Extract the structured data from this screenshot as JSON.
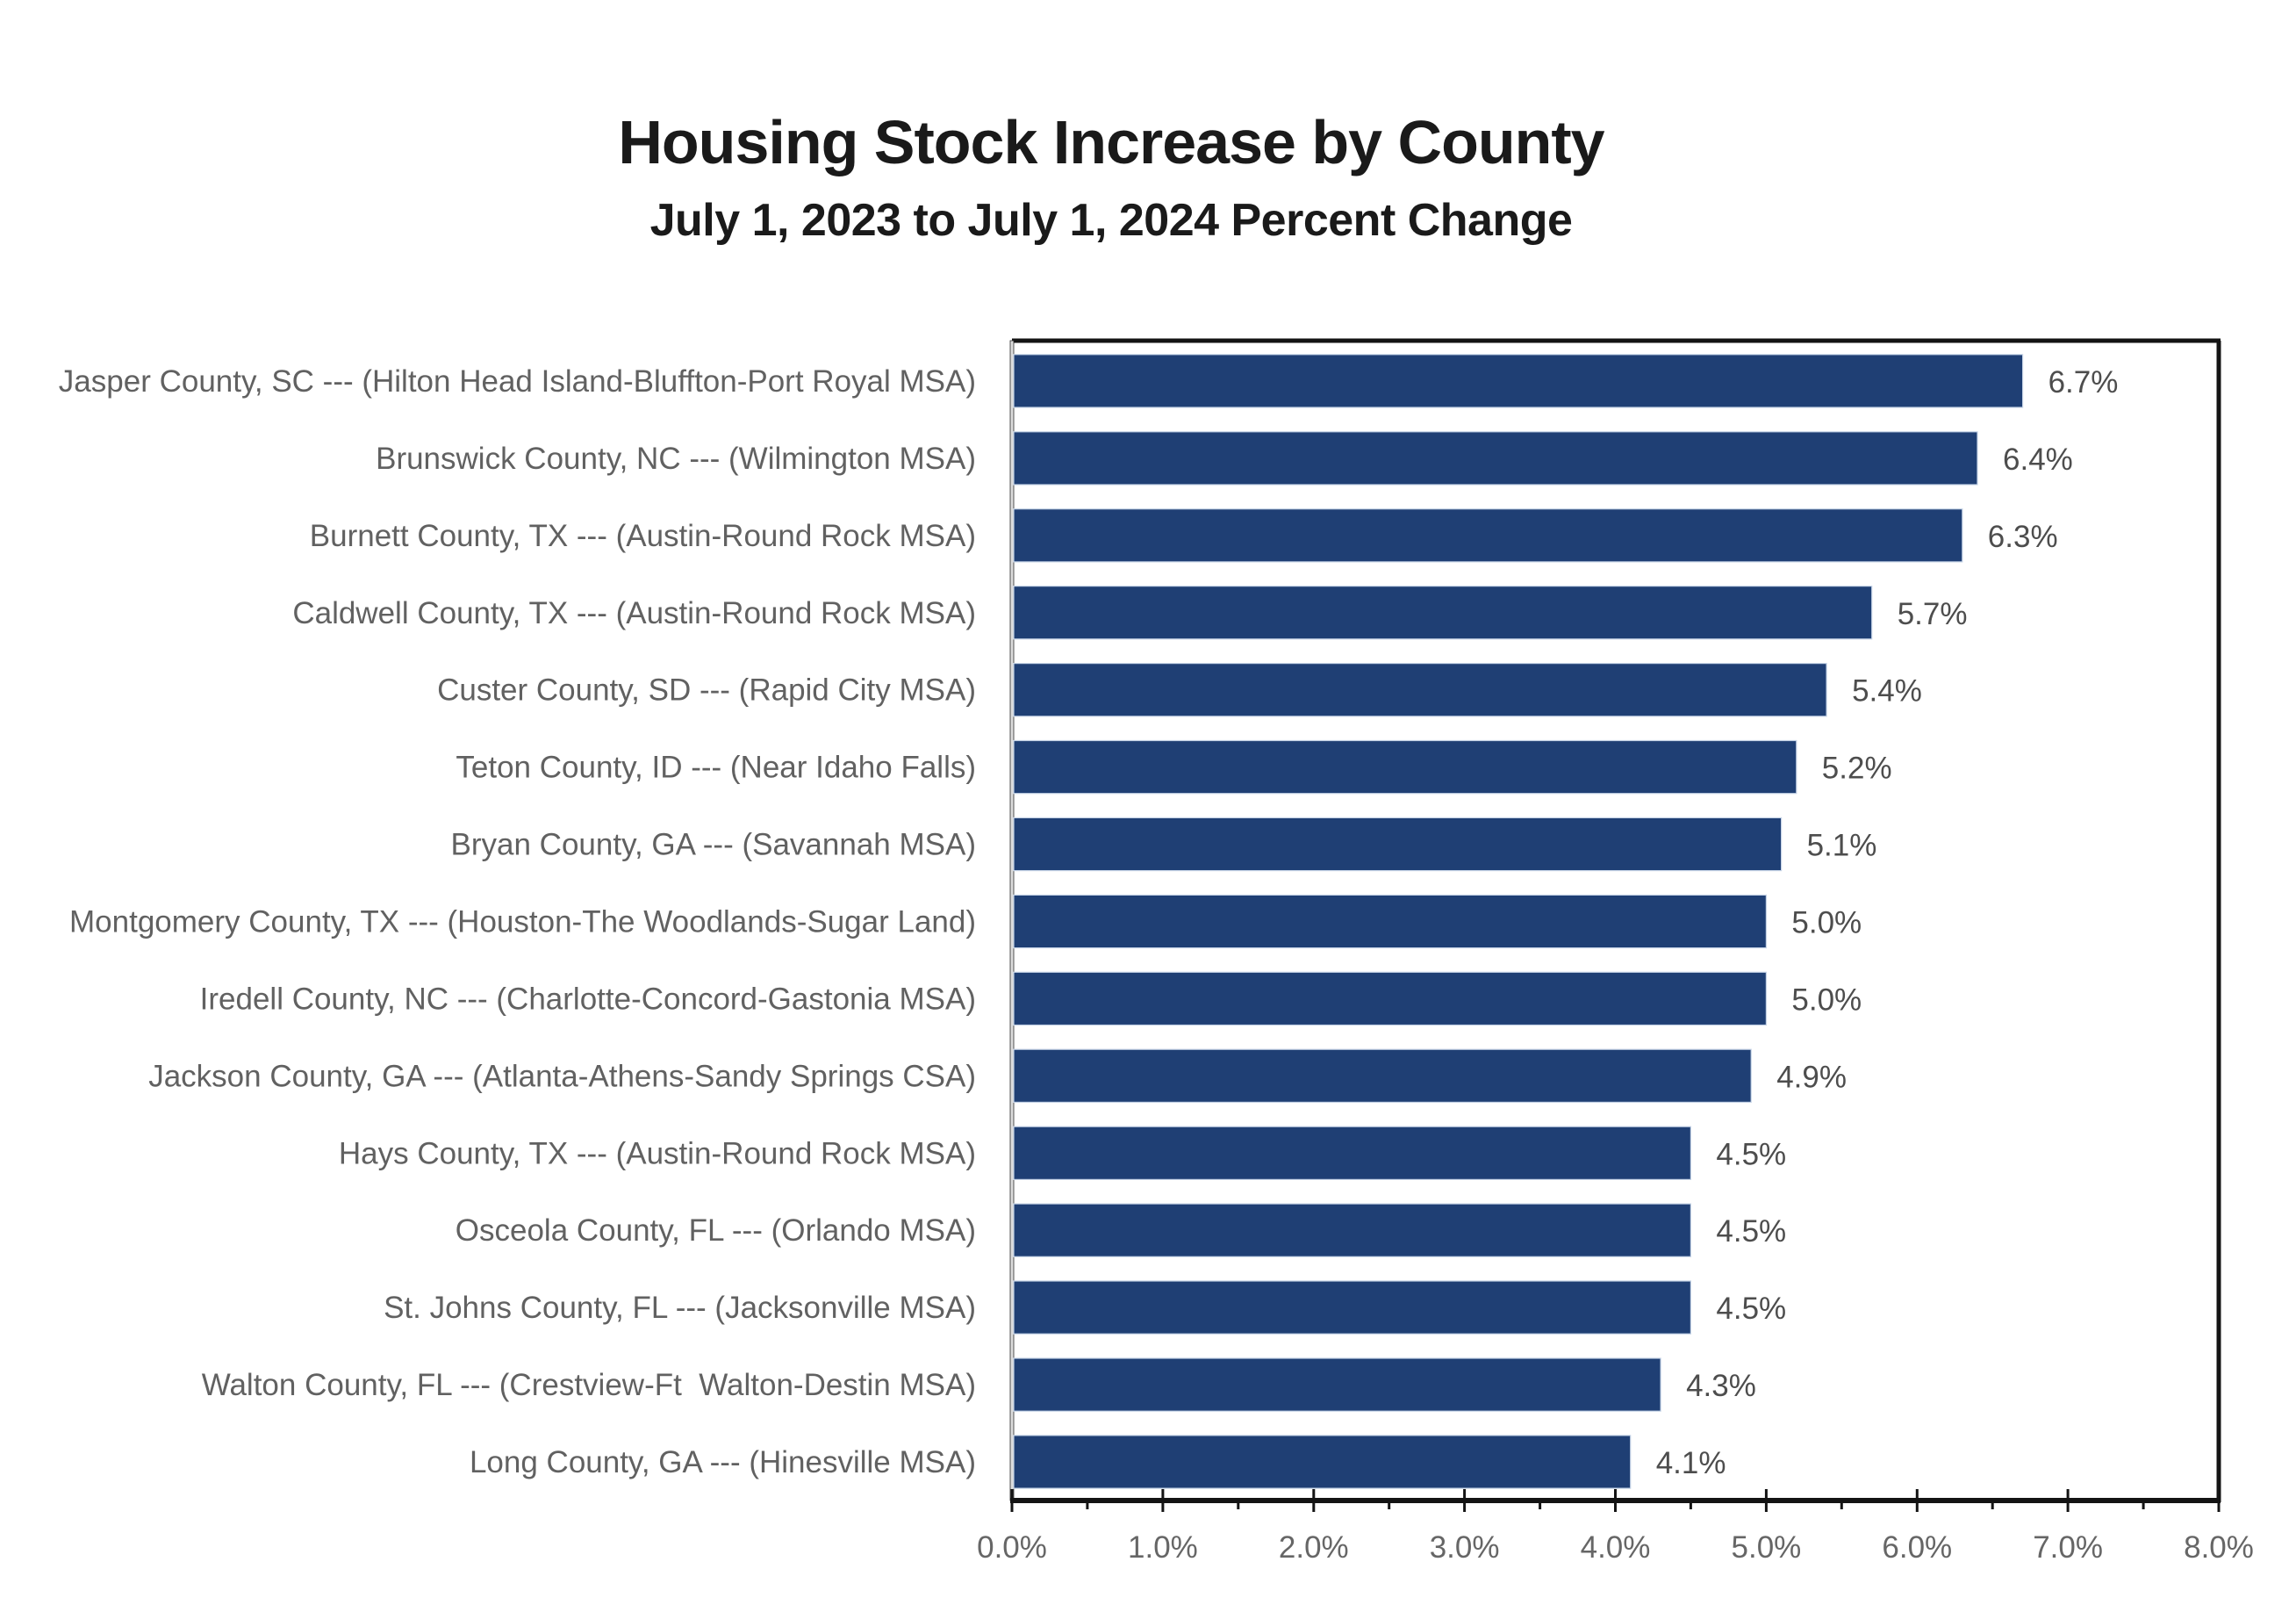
{
  "chart_data": {
    "type": "bar",
    "orientation": "horizontal",
    "title": "Housing Stock Increase by County",
    "subtitle": "July 1, 2023 to July 1, 2024 Percent Change",
    "xlabel": "",
    "ylabel": "",
    "xlim": [
      0,
      8
    ],
    "x_unit": "%",
    "x_ticks": [
      "0.0%",
      "1.0%",
      "2.0%",
      "3.0%",
      "4.0%",
      "5.0%",
      "6.0%",
      "7.0%",
      "8.0%"
    ],
    "x_tick_values": [
      0,
      1,
      2,
      3,
      4,
      5,
      6,
      7,
      8
    ],
    "x_minor_tick_step": 0.5,
    "grid": false,
    "legend": "none",
    "bar_color": "#1f3f74",
    "categories": [
      "Jasper County, SC --- (Hilton Head Island-Bluffton-Port Royal MSA)",
      "Brunswick County, NC --- (Wilmington MSA)",
      "Burnett County, TX --- (Austin-Round Rock MSA)",
      "Caldwell County, TX --- (Austin-Round Rock MSA)",
      "Custer County, SD --- (Rapid City MSA)",
      "Teton County, ID --- (Near Idaho Falls)",
      "Bryan County, GA --- (Savannah MSA)",
      "Montgomery County, TX --- (Houston-The Woodlands-Sugar Land)",
      "Iredell County, NC --- (Charlotte-Concord-Gastonia MSA)",
      "Jackson County, GA --- (Atlanta-Athens-Sandy Springs CSA)",
      "Hays County, TX --- (Austin-Round Rock MSA)",
      "Osceola County, FL --- (Orlando MSA)",
      "St. Johns County, FL --- (Jacksonville MSA)",
      "Walton County, FL --- (Crestview-Ft  Walton-Destin MSA)",
      "Long County, GA --- (Hinesville MSA)"
    ],
    "values": [
      6.7,
      6.4,
      6.3,
      5.7,
      5.4,
      5.2,
      5.1,
      5.0,
      5.0,
      4.9,
      4.5,
      4.5,
      4.5,
      4.3,
      4.1
    ],
    "data_labels": [
      "6.7%",
      "6.4%",
      "6.3%",
      "5.7%",
      "5.4%",
      "5.2%",
      "5.1%",
      "5.0%",
      "5.0%",
      "4.9%",
      "4.5%",
      "4.5%",
      "4.5%",
      "4.3%",
      "4.1%"
    ]
  }
}
